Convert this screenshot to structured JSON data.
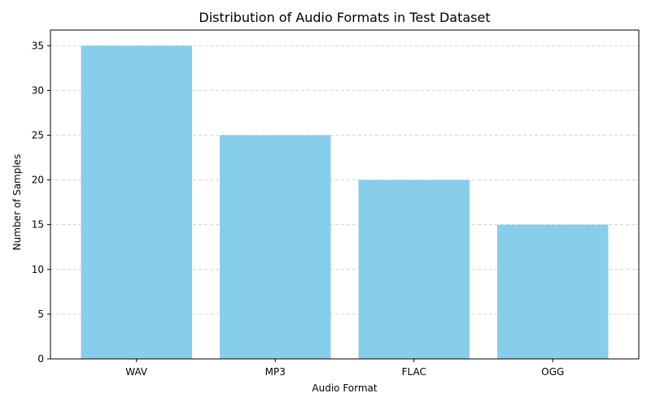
{
  "chart_data": {
    "type": "bar",
    "title": "Distribution of Audio Formats in Test Dataset",
    "xlabel": "Audio Format",
    "ylabel": "Number of Samples",
    "categories": [
      "WAV",
      "MP3",
      "FLAC",
      "OGG"
    ],
    "values": [
      35,
      25,
      20,
      15
    ],
    "ylim": [
      0,
      36.75
    ],
    "yticks": [
      0,
      5,
      10,
      15,
      20,
      25,
      30,
      35
    ],
    "grid": "y",
    "bar_color": "#87CEEB",
    "grid_color": "#c8c8c8",
    "axis_color": "#000000",
    "text_color": "#000000",
    "legend": "none"
  }
}
